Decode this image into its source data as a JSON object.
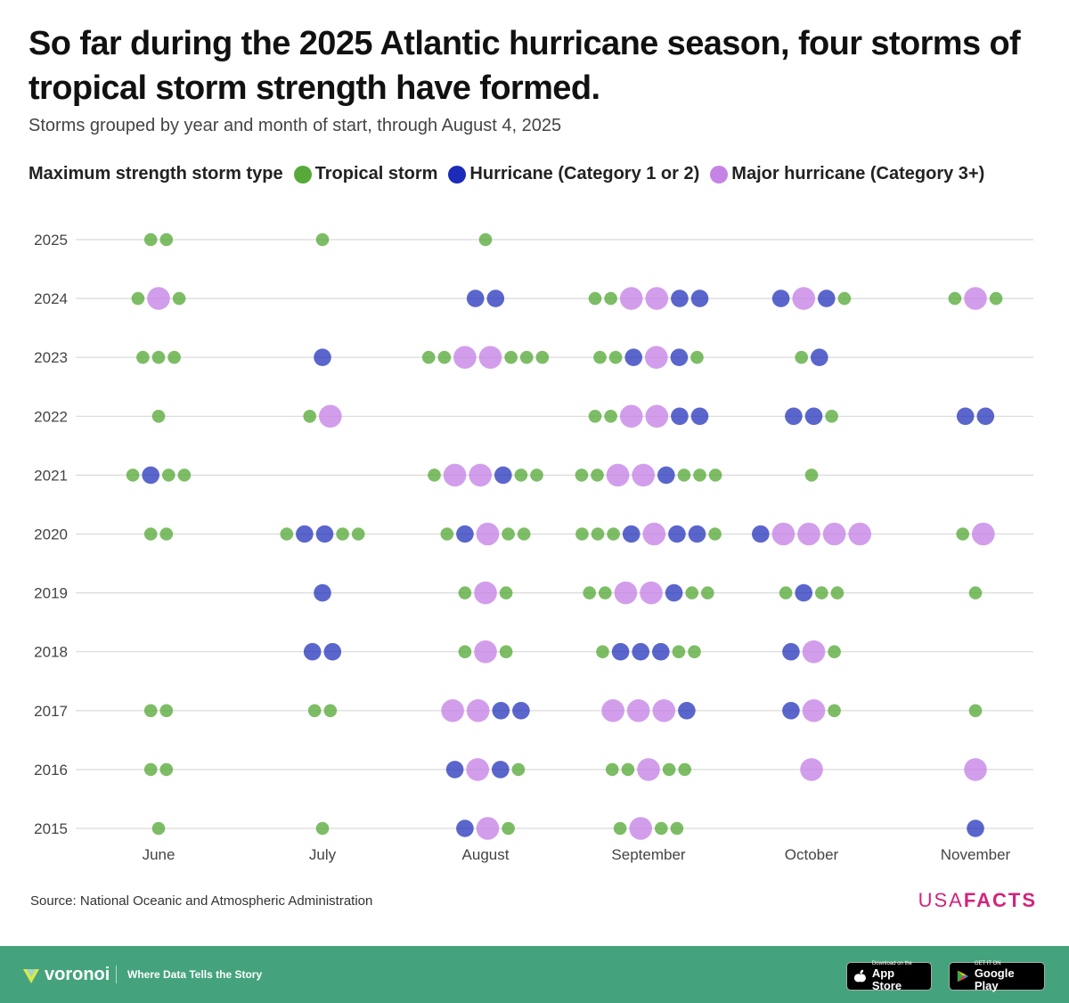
{
  "header": {
    "title": "So far during the 2025 Atlantic hurricane season, four storms of tropical storm strength have formed.",
    "subtitle": "Storms grouped by year and month of start, through August 4, 2025"
  },
  "legend": {
    "title": "Maximum strength storm type",
    "items": [
      {
        "label": "Tropical storm",
        "color": "#57aa3a"
      },
      {
        "label": "Hurricane (Category 1 or 2)",
        "color": "#1c2bb8"
      },
      {
        "label": "Major hurricane (Category 3+)",
        "color": "#c583e6"
      }
    ]
  },
  "chart_data": {
    "type": "scatter",
    "title": "So far during the 2025 Atlantic hurricane season, four storms of tropical storm strength have formed.",
    "subtitle": "Storms grouped by year and month of start, through August 4, 2025",
    "categories": [
      "June",
      "July",
      "August",
      "September",
      "October",
      "November"
    ],
    "years": [
      "2025",
      "2024",
      "2023",
      "2022",
      "2021",
      "2020",
      "2019",
      "2018",
      "2017",
      "2016",
      "2015"
    ],
    "type_colors": {
      "T": "#57aa3a",
      "H": "#1c2bb8",
      "M": "#c583e6"
    },
    "type_names": {
      "T": "Tropical storm",
      "H": "Hurricane (Category 1 or 2)",
      "M": "Major hurricane (Category 3+)"
    },
    "counts": {
      "2025": {
        "June": "TT",
        "July": "T",
        "August": "T",
        "September": "",
        "October": "",
        "November": ""
      },
      "2024": {
        "June": "TMT",
        "July": "",
        "August": "HH",
        "September": "TTMMHH",
        "October": "HMHT",
        "November": "TMT"
      },
      "2023": {
        "June": "TTT",
        "July": "H",
        "August": "TTMMTTT",
        "September": "TTHMHT",
        "October": "TH",
        "November": ""
      },
      "2022": {
        "June": "T",
        "July": "TM",
        "August": "",
        "September": "TTMMHH",
        "October": "HHT",
        "November": "HH"
      },
      "2021": {
        "June": "THTT",
        "July": "",
        "August": "TMMHTT",
        "September": "TTMMHTTT",
        "October": "T",
        "November": ""
      },
      "2020": {
        "June": "TT",
        "July": "THHTT",
        "August": "THMTT",
        "September": "TTTHMHHT",
        "October": "HMMMM",
        "November": "TM"
      },
      "2019": {
        "June": "",
        "July": "H",
        "August": "TMT",
        "September": "TTMMHTT",
        "October": "THTT",
        "November": "T"
      },
      "2018": {
        "June": "",
        "July": "HH",
        "August": "TMT",
        "September": "THHHTT",
        "October": "HMT",
        "November": ""
      },
      "2017": {
        "June": "TT",
        "July": "TT",
        "August": "MMHH",
        "September": "MMMH",
        "October": "HMT",
        "November": "T"
      },
      "2016": {
        "June": "TT",
        "July": "",
        "August": "HMHT",
        "September": "TTMTT",
        "October": "M",
        "November": "M"
      },
      "2015": {
        "June": "T",
        "July": "T",
        "August": "HMT",
        "September": "TMTT",
        "October": "",
        "November": "H"
      }
    }
  },
  "footer": {
    "source": "Source: National Oceanic and Atmospheric Administration",
    "brand_light": "USA",
    "brand_bold": "FACTS",
    "voronoi_name": "voronoi",
    "tagline": "Where Data Tells the Story",
    "appstore_small": "Download on the",
    "appstore_big": "App Store",
    "googleplay_small": "GET IT ON",
    "googleplay_big": "Google Play"
  }
}
